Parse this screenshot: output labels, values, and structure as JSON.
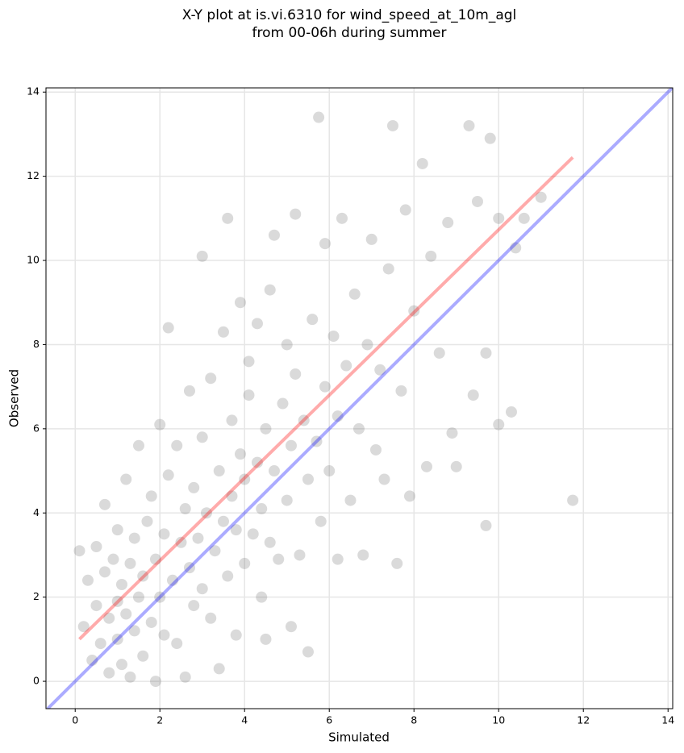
{
  "chart_data": {
    "type": "scatter",
    "title": "X-Y plot at is.vi.6310 for wind_speed_at_10m_agl\nfrom 00-06h during summer",
    "xlabel": "Simulated",
    "ylabel": "Observed",
    "color": "#555555",
    "x": [
      0.1,
      0.2,
      0.3,
      0.4,
      0.5,
      0.5,
      0.6,
      0.7,
      0.7,
      0.8,
      0.8,
      0.9,
      1.0,
      1.0,
      1.0,
      1.1,
      1.1,
      1.2,
      1.2,
      1.3,
      1.3,
      1.4,
      1.4,
      1.5,
      1.5,
      1.6,
      1.6,
      1.7,
      1.8,
      1.8,
      1.9,
      1.9,
      2.0,
      2.0,
      2.1,
      2.1,
      2.2,
      2.2,
      2.3,
      2.4,
      2.4,
      2.5,
      2.6,
      2.6,
      2.7,
      2.7,
      2.8,
      2.8,
      2.9,
      3.0,
      3.0,
      3.0,
      3.1,
      3.2,
      3.2,
      3.3,
      3.4,
      3.4,
      3.5,
      3.5,
      3.6,
      3.6,
      3.7,
      3.7,
      3.8,
      3.8,
      3.9,
      3.9,
      4.0,
      4.0,
      4.1,
      4.1,
      4.2,
      4.3,
      4.3,
      4.4,
      4.4,
      4.5,
      4.5,
      4.6,
      4.6,
      4.7,
      4.7,
      4.8,
      4.9,
      5.0,
      5.0,
      5.1,
      5.1,
      5.2,
      5.2,
      5.3,
      5.4,
      5.5,
      5.5,
      5.6,
      5.7,
      5.75,
      5.8,
      5.9,
      5.9,
      6.0,
      6.1,
      6.2,
      6.2,
      6.3,
      6.4,
      6.5,
      6.6,
      6.7,
      6.8,
      6.9,
      7.0,
      7.1,
      7.2,
      7.3,
      7.4,
      7.5,
      7.6,
      7.7,
      7.8,
      7.9,
      8.0,
      8.2,
      8.3,
      8.4,
      8.6,
      8.8,
      8.9,
      9.0,
      9.3,
      9.4,
      9.5,
      9.7,
      9.7,
      9.8,
      10.0,
      10.0,
      10.3,
      10.4,
      10.6,
      11.0,
      11.75
    ],
    "values": [
      3.1,
      1.3,
      2.4,
      0.5,
      1.8,
      3.2,
      0.9,
      2.6,
      4.2,
      1.5,
      0.2,
      2.9,
      1.0,
      1.9,
      3.6,
      0.4,
      2.3,
      1.6,
      4.8,
      0.1,
      2.8,
      1.2,
      3.4,
      2.0,
      5.6,
      0.6,
      2.5,
      3.8,
      1.4,
      4.4,
      0.0,
      2.9,
      2.0,
      6.1,
      1.1,
      3.5,
      4.9,
      8.4,
      2.4,
      0.9,
      5.6,
      3.3,
      0.1,
      4.1,
      2.7,
      6.9,
      1.8,
      4.6,
      3.4,
      2.2,
      5.8,
      10.1,
      4.0,
      1.5,
      7.2,
      3.1,
      0.3,
      5.0,
      3.8,
      8.3,
      2.5,
      11.0,
      4.4,
      6.2,
      1.1,
      3.6,
      5.4,
      9.0,
      2.8,
      4.8,
      6.8,
      7.6,
      3.5,
      5.2,
      8.5,
      2.0,
      4.1,
      1.0,
      6.0,
      3.3,
      9.3,
      5.0,
      10.6,
      2.9,
      6.6,
      4.3,
      8.0,
      1.3,
      5.6,
      7.3,
      11.1,
      3.0,
      6.2,
      0.7,
      4.8,
      8.6,
      5.7,
      13.4,
      3.8,
      7.0,
      10.4,
      5.0,
      8.2,
      2.9,
      6.3,
      11.0,
      7.5,
      4.3,
      9.2,
      6.0,
      3.0,
      8.0,
      10.5,
      5.5,
      7.4,
      4.8,
      9.8,
      13.2,
      2.8,
      6.9,
      11.2,
      4.4,
      8.8,
      12.3,
      5.1,
      10.1,
      7.8,
      10.9,
      5.9,
      5.1,
      13.2,
      6.8,
      11.4,
      3.7,
      7.8,
      12.9,
      6.1,
      11.0,
      6.4,
      10.3,
      11.0,
      11.5,
      4.3
    ],
    "lines": [
      {
        "color": "#0000ff",
        "x": [
          -0.65,
          14.1
        ],
        "values": [
          -0.65,
          14.1
        ]
      },
      {
        "color": "#ff0000",
        "x": [
          0.1,
          11.75
        ],
        "values": [
          1.0,
          12.45
        ]
      }
    ],
    "xlim": [
      -0.69,
      14.11
    ],
    "ylim": [
      -0.65,
      14.1
    ],
    "xticks": [
      0,
      2,
      4,
      6,
      8,
      10,
      12,
      14
    ],
    "yticks": [
      0,
      2,
      4,
      6,
      8,
      10,
      12,
      14
    ],
    "grid": true
  }
}
